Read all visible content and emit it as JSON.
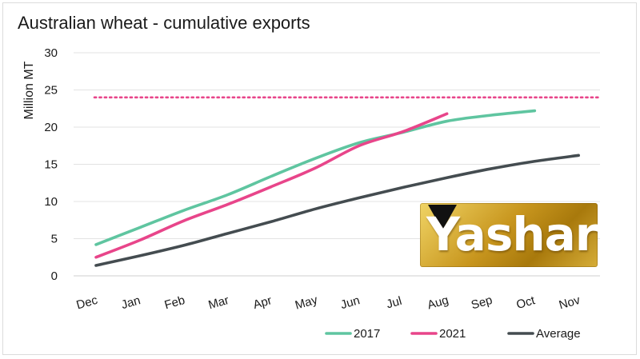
{
  "chart_data": {
    "type": "line",
    "title": "Australian wheat - cumulative exports",
    "xlabel": "",
    "ylabel": "Million MT",
    "categories": [
      "Dec",
      "Jan",
      "Feb",
      "Mar",
      "Apr",
      "May",
      "Jun",
      "Jul",
      "Aug",
      "Sep",
      "Oct",
      "Nov"
    ],
    "ylim": [
      0,
      30
    ],
    "yticks": [
      "0",
      "5",
      "10",
      "15",
      "20",
      "25",
      "30"
    ],
    "grid": true,
    "series": [
      {
        "name": "2017",
        "color": "#5fc5a0",
        "values": [
          4.2,
          6.5,
          8.8,
          10.9,
          13.4,
          15.8,
          17.9,
          19.3,
          20.8,
          21.6,
          22.2,
          null
        ]
      },
      {
        "name": "2021",
        "color": "#e8458a",
        "values": [
          2.5,
          4.8,
          7.4,
          9.6,
          12.0,
          14.5,
          17.5,
          19.4,
          21.8,
          null,
          null,
          null
        ]
      },
      {
        "name": "Average",
        "color": "#444c50",
        "values": [
          1.4,
          2.7,
          4.1,
          5.7,
          7.3,
          9.0,
          10.5,
          11.9,
          13.2,
          14.4,
          15.4,
          16.2
        ]
      }
    ],
    "reference_line": {
      "value": 24,
      "color": "#e8458a",
      "style": "dotted"
    },
    "legend": {
      "placement": "bottom-right",
      "entries": [
        "2017",
        "2021",
        "Average"
      ]
    }
  },
  "logo": {
    "text": "Yashar"
  }
}
